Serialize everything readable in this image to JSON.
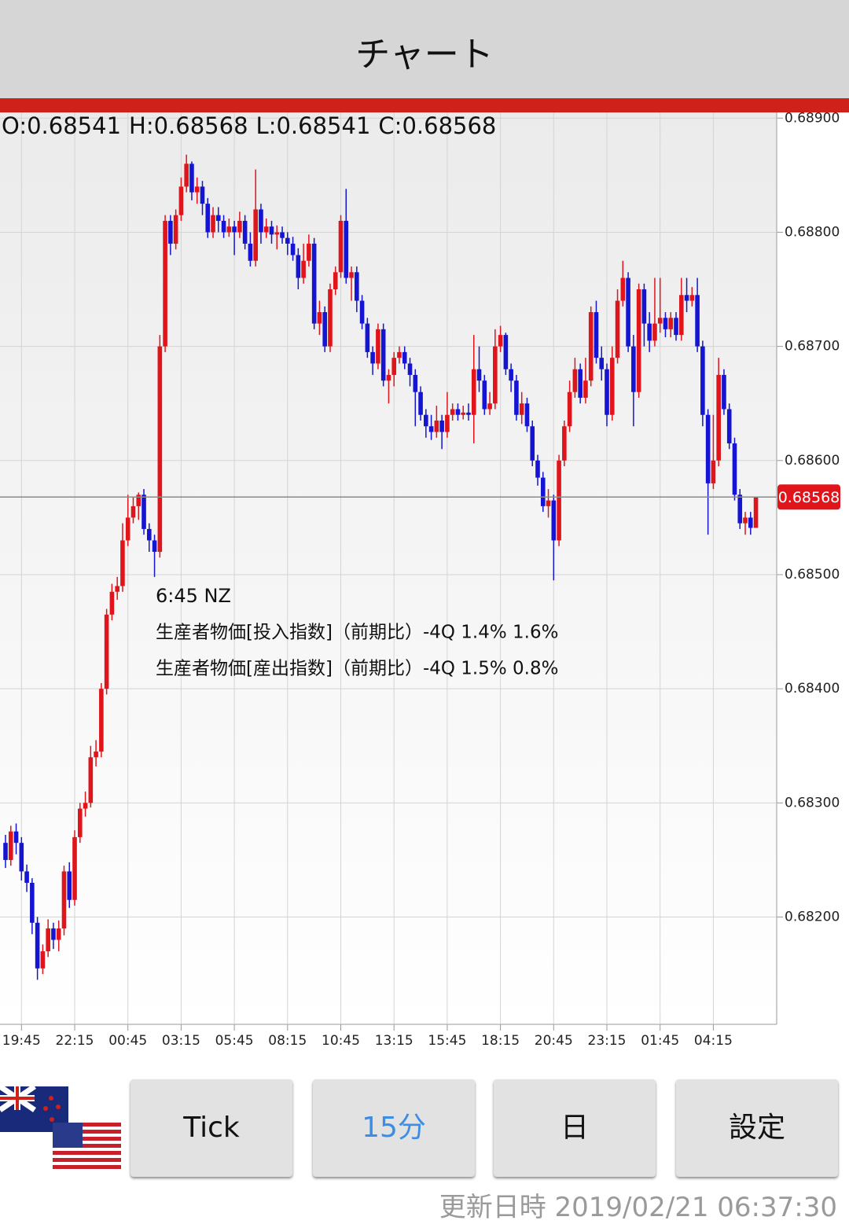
{
  "header": {
    "title": "チャート"
  },
  "chart_data": {
    "type": "candlestick",
    "ohlc_labels": [
      "O:",
      "H:",
      "L:",
      "C:"
    ],
    "up_color": "#e0141b",
    "down_color": "#1414d2",
    "ylim": [
      0.68106,
      0.68905
    ],
    "yticks": [
      {
        "value": 0.682,
        "label": "0.68200"
      },
      {
        "value": 0.683,
        "label": "0.68300"
      },
      {
        "value": 0.684,
        "label": "0.68400"
      },
      {
        "value": 0.685,
        "label": "0.68500"
      },
      {
        "value": 0.686,
        "label": "0.68600"
      },
      {
        "value": 0.687,
        "label": "0.68700"
      },
      {
        "value": 0.688,
        "label": "0.68800"
      },
      {
        "value": 0.689,
        "label": "0.68900"
      }
    ],
    "grid": true,
    "categories": [
      null,
      null,
      null,
      "19:45",
      null,
      null,
      null,
      null,
      null,
      null,
      null,
      null,
      null,
      "22:15",
      null,
      null,
      null,
      null,
      null,
      null,
      null,
      null,
      null,
      "00:45",
      null,
      null,
      null,
      null,
      null,
      null,
      null,
      null,
      null,
      "03:15",
      null,
      null,
      null,
      null,
      null,
      null,
      null,
      null,
      null,
      "05:45",
      null,
      null,
      null,
      null,
      null,
      null,
      null,
      null,
      null,
      "08:15",
      null,
      null,
      null,
      null,
      null,
      null,
      null,
      null,
      null,
      "10:45",
      null,
      null,
      null,
      null,
      null,
      null,
      null,
      null,
      null,
      "13:15",
      null,
      null,
      null,
      null,
      null,
      null,
      null,
      null,
      null,
      "15:45",
      null,
      null,
      null,
      null,
      null,
      null,
      null,
      null,
      null,
      "18:15",
      null,
      null,
      null,
      null,
      null,
      null,
      null,
      null,
      null,
      "20:45",
      null,
      null,
      null,
      null,
      null,
      null,
      null,
      null,
      null,
      "23:15",
      null,
      null,
      null,
      null,
      null,
      null,
      null,
      null,
      null,
      "01:45",
      null,
      null,
      null,
      null,
      null,
      null,
      null,
      null,
      null,
      "04:15",
      null,
      null,
      null,
      null,
      null,
      null,
      null,
      null
    ],
    "ohlc": [
      [
        0.68265,
        0.68272,
        0.68243,
        0.6825
      ],
      [
        0.6825,
        0.6828,
        0.68245,
        0.68275
      ],
      [
        0.68275,
        0.68282,
        0.68255,
        0.68265
      ],
      [
        0.68265,
        0.6827,
        0.68232,
        0.6824
      ],
      [
        0.6824,
        0.68246,
        0.68222,
        0.6823
      ],
      [
        0.6823,
        0.68234,
        0.68185,
        0.68195
      ],
      [
        0.68195,
        0.682,
        0.68145,
        0.68155
      ],
      [
        0.68155,
        0.68176,
        0.6815,
        0.6817
      ],
      [
        0.6817,
        0.68198,
        0.68165,
        0.6819
      ],
      [
        0.6819,
        0.68195,
        0.68172,
        0.6818
      ],
      [
        0.6818,
        0.68197,
        0.6817,
        0.6819
      ],
      [
        0.6819,
        0.68245,
        0.68184,
        0.6824
      ],
      [
        0.6824,
        0.68248,
        0.68208,
        0.68215
      ],
      [
        0.68215,
        0.68276,
        0.6821,
        0.6827
      ],
      [
        0.6827,
        0.683,
        0.68265,
        0.68295
      ],
      [
        0.68295,
        0.6831,
        0.68288,
        0.683
      ],
      [
        0.683,
        0.6835,
        0.68296,
        0.6834
      ],
      [
        0.6834,
        0.68355,
        0.68332,
        0.68345
      ],
      [
        0.68345,
        0.68405,
        0.6834,
        0.684
      ],
      [
        0.684,
        0.6847,
        0.68395,
        0.68465
      ],
      [
        0.68465,
        0.68492,
        0.6846,
        0.68485
      ],
      [
        0.68485,
        0.68498,
        0.68478,
        0.6849
      ],
      [
        0.6849,
        0.68545,
        0.68485,
        0.6853
      ],
      [
        0.6853,
        0.6857,
        0.68525,
        0.6855
      ],
      [
        0.6855,
        0.68568,
        0.68545,
        0.6856
      ],
      [
        0.6856,
        0.68572,
        0.68548,
        0.6857
      ],
      [
        0.6857,
        0.68575,
        0.68535,
        0.6854
      ],
      [
        0.6854,
        0.68545,
        0.6852,
        0.6853
      ],
      [
        0.6853,
        0.68535,
        0.68498,
        0.6852
      ],
      [
        0.6852,
        0.6871,
        0.68515,
        0.687
      ],
      [
        0.687,
        0.68815,
        0.68695,
        0.6881
      ],
      [
        0.6881,
        0.68815,
        0.6878,
        0.6879
      ],
      [
        0.6879,
        0.6882,
        0.68785,
        0.68815
      ],
      [
        0.68815,
        0.68848,
        0.6881,
        0.6884
      ],
      [
        0.6884,
        0.68868,
        0.68835,
        0.6886
      ],
      [
        0.6886,
        0.68862,
        0.68828,
        0.68835
      ],
      [
        0.68835,
        0.68848,
        0.68825,
        0.6884
      ],
      [
        0.6884,
        0.68845,
        0.68815,
        0.68825
      ],
      [
        0.68825,
        0.6883,
        0.68795,
        0.688
      ],
      [
        0.688,
        0.68822,
        0.68795,
        0.68815
      ],
      [
        0.68815,
        0.68822,
        0.688,
        0.6881
      ],
      [
        0.6881,
        0.68815,
        0.68795,
        0.688
      ],
      [
        0.688,
        0.68812,
        0.68796,
        0.68805
      ],
      [
        0.68805,
        0.6881,
        0.6878,
        0.688
      ],
      [
        0.688,
        0.68818,
        0.68795,
        0.6881
      ],
      [
        0.6881,
        0.68815,
        0.68785,
        0.6879
      ],
      [
        0.6879,
        0.688,
        0.6877,
        0.68775
      ],
      [
        0.68775,
        0.68855,
        0.6877,
        0.6882
      ],
      [
        0.6882,
        0.68825,
        0.6879,
        0.688
      ],
      [
        0.688,
        0.68812,
        0.68795,
        0.68805
      ],
      [
        0.68805,
        0.6881,
        0.6879,
        0.68798
      ],
      [
        0.68798,
        0.68806,
        0.68785,
        0.688
      ],
      [
        0.688,
        0.68805,
        0.6879,
        0.68795
      ],
      [
        0.68795,
        0.688,
        0.6878,
        0.6879
      ],
      [
        0.6879,
        0.68796,
        0.68775,
        0.6878
      ],
      [
        0.6878,
        0.68786,
        0.6875,
        0.6876
      ],
      [
        0.6876,
        0.6879,
        0.68755,
        0.68775
      ],
      [
        0.68775,
        0.68798,
        0.6877,
        0.6879
      ],
      [
        0.6879,
        0.68795,
        0.68715,
        0.6872
      ],
      [
        0.6872,
        0.6874,
        0.6871,
        0.6873
      ],
      [
        0.6873,
        0.68735,
        0.68695,
        0.687
      ],
      [
        0.687,
        0.68755,
        0.68695,
        0.6875
      ],
      [
        0.6875,
        0.6877,
        0.68745,
        0.68765
      ],
      [
        0.68765,
        0.68815,
        0.6876,
        0.6881
      ],
      [
        0.6881,
        0.68838,
        0.68755,
        0.6876
      ],
      [
        0.6876,
        0.6877,
        0.6874,
        0.68765
      ],
      [
        0.68765,
        0.6877,
        0.6873,
        0.6874
      ],
      [
        0.6874,
        0.68745,
        0.68715,
        0.6872
      ],
      [
        0.6872,
        0.68725,
        0.6869,
        0.68695
      ],
      [
        0.68695,
        0.687,
        0.68675,
        0.68685
      ],
      [
        0.68685,
        0.6872,
        0.6868,
        0.68715
      ],
      [
        0.68715,
        0.6872,
        0.68665,
        0.6867
      ],
      [
        0.6867,
        0.6868,
        0.6865,
        0.68675
      ],
      [
        0.68675,
        0.68695,
        0.68665,
        0.6869
      ],
      [
        0.6869,
        0.687,
        0.68685,
        0.68695
      ],
      [
        0.68695,
        0.687,
        0.6868,
        0.68685
      ],
      [
        0.68685,
        0.6869,
        0.68665,
        0.68675
      ],
      [
        0.68675,
        0.6868,
        0.6863,
        0.6866
      ],
      [
        0.6866,
        0.68665,
        0.68635,
        0.6864
      ],
      [
        0.6864,
        0.68645,
        0.6862,
        0.6863
      ],
      [
        0.6863,
        0.6864,
        0.68618,
        0.68625
      ],
      [
        0.68625,
        0.68648,
        0.6862,
        0.68635
      ],
      [
        0.68635,
        0.6864,
        0.6861,
        0.68625
      ],
      [
        0.68625,
        0.6866,
        0.6862,
        0.6864
      ],
      [
        0.6864,
        0.6865,
        0.68635,
        0.68645
      ],
      [
        0.68645,
        0.6865,
        0.68635,
        0.6864
      ],
      [
        0.6864,
        0.68648,
        0.68636,
        0.68642
      ],
      [
        0.68642,
        0.6865,
        0.68635,
        0.6864
      ],
      [
        0.6864,
        0.6871,
        0.68615,
        0.6868
      ],
      [
        0.6868,
        0.687,
        0.6866,
        0.6867
      ],
      [
        0.6867,
        0.68675,
        0.6864,
        0.68645
      ],
      [
        0.68645,
        0.6866,
        0.6864,
        0.6865
      ],
      [
        0.6865,
        0.68715,
        0.68645,
        0.687
      ],
      [
        0.687,
        0.68718,
        0.68695,
        0.6871
      ],
      [
        0.6871,
        0.68712,
        0.68675,
        0.6868
      ],
      [
        0.6868,
        0.68685,
        0.6866,
        0.6867
      ],
      [
        0.6867,
        0.68675,
        0.68635,
        0.6864
      ],
      [
        0.6864,
        0.6866,
        0.68632,
        0.6865
      ],
      [
        0.6865,
        0.68655,
        0.68625,
        0.6863
      ],
      [
        0.6863,
        0.68635,
        0.68595,
        0.686
      ],
      [
        0.686,
        0.68605,
        0.68578,
        0.68585
      ],
      [
        0.68585,
        0.6859,
        0.68555,
        0.6856
      ],
      [
        0.6856,
        0.68575,
        0.6855,
        0.68565
      ],
      [
        0.68565,
        0.6857,
        0.68495,
        0.6853
      ],
      [
        0.6853,
        0.68605,
        0.68525,
        0.686
      ],
      [
        0.686,
        0.68635,
        0.68595,
        0.6863
      ],
      [
        0.6863,
        0.6867,
        0.68625,
        0.6866
      ],
      [
        0.6866,
        0.6869,
        0.68655,
        0.6868
      ],
      [
        0.6868,
        0.68685,
        0.6865,
        0.68655
      ],
      [
        0.68655,
        0.6869,
        0.6865,
        0.6867
      ],
      [
        0.6867,
        0.68735,
        0.68665,
        0.6873
      ],
      [
        0.6873,
        0.6874,
        0.68685,
        0.6869
      ],
      [
        0.6869,
        0.687,
        0.6867,
        0.6868
      ],
      [
        0.6868,
        0.68685,
        0.6863,
        0.6864
      ],
      [
        0.6864,
        0.687,
        0.68635,
        0.6869
      ],
      [
        0.6869,
        0.6875,
        0.68685,
        0.6874
      ],
      [
        0.6874,
        0.68775,
        0.68735,
        0.6876
      ],
      [
        0.6876,
        0.68765,
        0.68695,
        0.687
      ],
      [
        0.687,
        0.6871,
        0.6863,
        0.6866
      ],
      [
        0.6866,
        0.68755,
        0.68655,
        0.6875
      ],
      [
        0.6875,
        0.68755,
        0.687,
        0.6872
      ],
      [
        0.6872,
        0.6873,
        0.68695,
        0.68705
      ],
      [
        0.68705,
        0.6876,
        0.687,
        0.6872
      ],
      [
        0.6872,
        0.6876,
        0.68712,
        0.68725
      ],
      [
        0.68725,
        0.6873,
        0.68708,
        0.68715
      ],
      [
        0.68715,
        0.6873,
        0.68708,
        0.68725
      ],
      [
        0.68725,
        0.6873,
        0.68705,
        0.6871
      ],
      [
        0.6871,
        0.6876,
        0.68705,
        0.68745
      ],
      [
        0.68745,
        0.6876,
        0.6873,
        0.6874
      ],
      [
        0.6874,
        0.68752,
        0.68735,
        0.68745
      ],
      [
        0.68745,
        0.6876,
        0.68695,
        0.687
      ],
      [
        0.687,
        0.68705,
        0.6863,
        0.6864
      ],
      [
        0.6864,
        0.68645,
        0.68535,
        0.6858
      ],
      [
        0.6858,
        0.6864,
        0.68575,
        0.686
      ],
      [
        0.686,
        0.6869,
        0.68595,
        0.68675
      ],
      [
        0.68675,
        0.6868,
        0.6864,
        0.68645
      ],
      [
        0.68645,
        0.6865,
        0.6861,
        0.68615
      ],
      [
        0.68615,
        0.6862,
        0.68565,
        0.6857
      ],
      [
        0.6857,
        0.68575,
        0.6854,
        0.68545
      ],
      [
        0.68545,
        0.68555,
        0.68535,
        0.6855
      ],
      [
        0.6855,
        0.68555,
        0.68535,
        0.68541
      ],
      [
        0.68541,
        0.68568,
        0.68541,
        0.68568
      ]
    ],
    "annotation": {
      "time": "6:45 NZ",
      "lines": [
        "生産者物価[投入指数]（前期比）-4Q 1.4% 1.6%",
        "生産者物価[産出指数]（前期比）-4Q 1.5% 0.8%"
      ]
    }
  },
  "buttons": [
    "Tick",
    "15分",
    "日",
    "設定"
  ],
  "footer": "更新日時 2019/02/21 06:37:30"
}
